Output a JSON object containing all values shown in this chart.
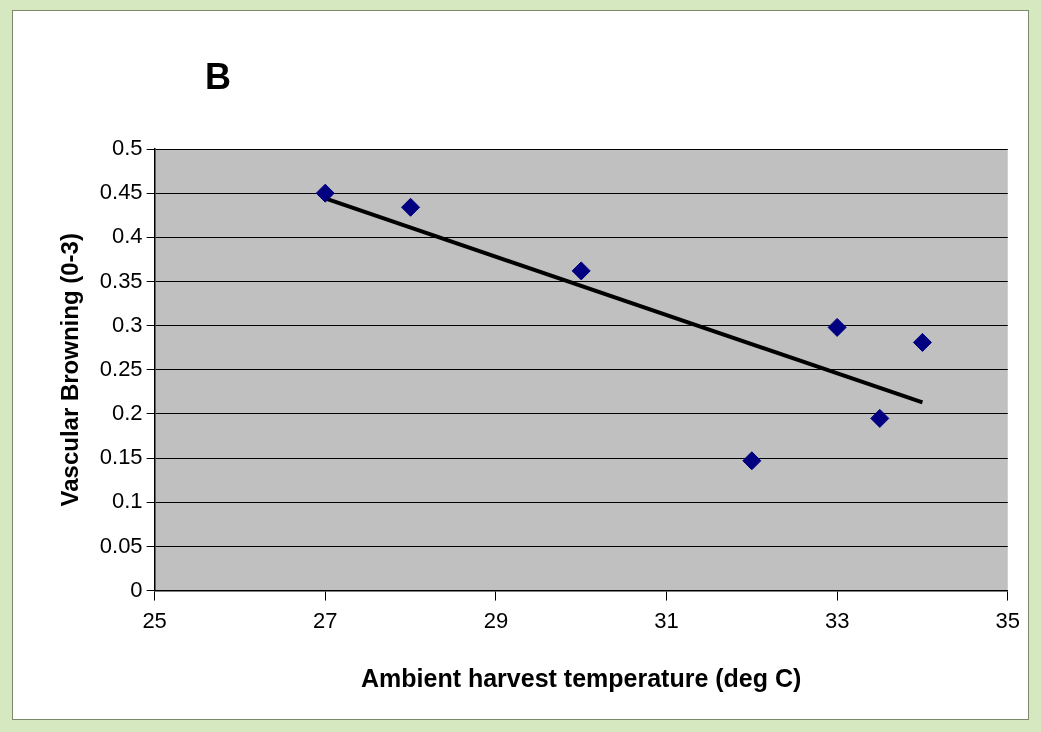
{
  "chart_data": {
    "type": "scatter",
    "title": "B",
    "xlabel": "Ambient harvest temperature (deg C)",
    "ylabel": "Vascular Browning (0-3)",
    "xlim": [
      25,
      35
    ],
    "xticks": [
      25,
      27,
      29,
      31,
      33,
      35
    ],
    "ylim": [
      0,
      0.5
    ],
    "yticks": [
      0,
      0.05,
      0.1,
      0.15,
      0.2,
      0.25,
      0.3,
      0.35,
      0.4,
      0.45,
      0.5
    ],
    "grid": "y",
    "legend": false,
    "series": [
      {
        "color": "#000080",
        "marker": "diamond",
        "x": [
          27,
          28,
          30,
          32,
          33,
          33.5,
          34
        ],
        "values": [
          0.45,
          0.434,
          0.362,
          0.147,
          0.298,
          0.195,
          0.281
        ]
      },
      {
        "type": "line",
        "color": "#000000",
        "marker": "none",
        "line_style": "solid",
        "x": [
          27,
          34
        ],
        "values": [
          0.444,
          0.213
        ]
      }
    ]
  }
}
